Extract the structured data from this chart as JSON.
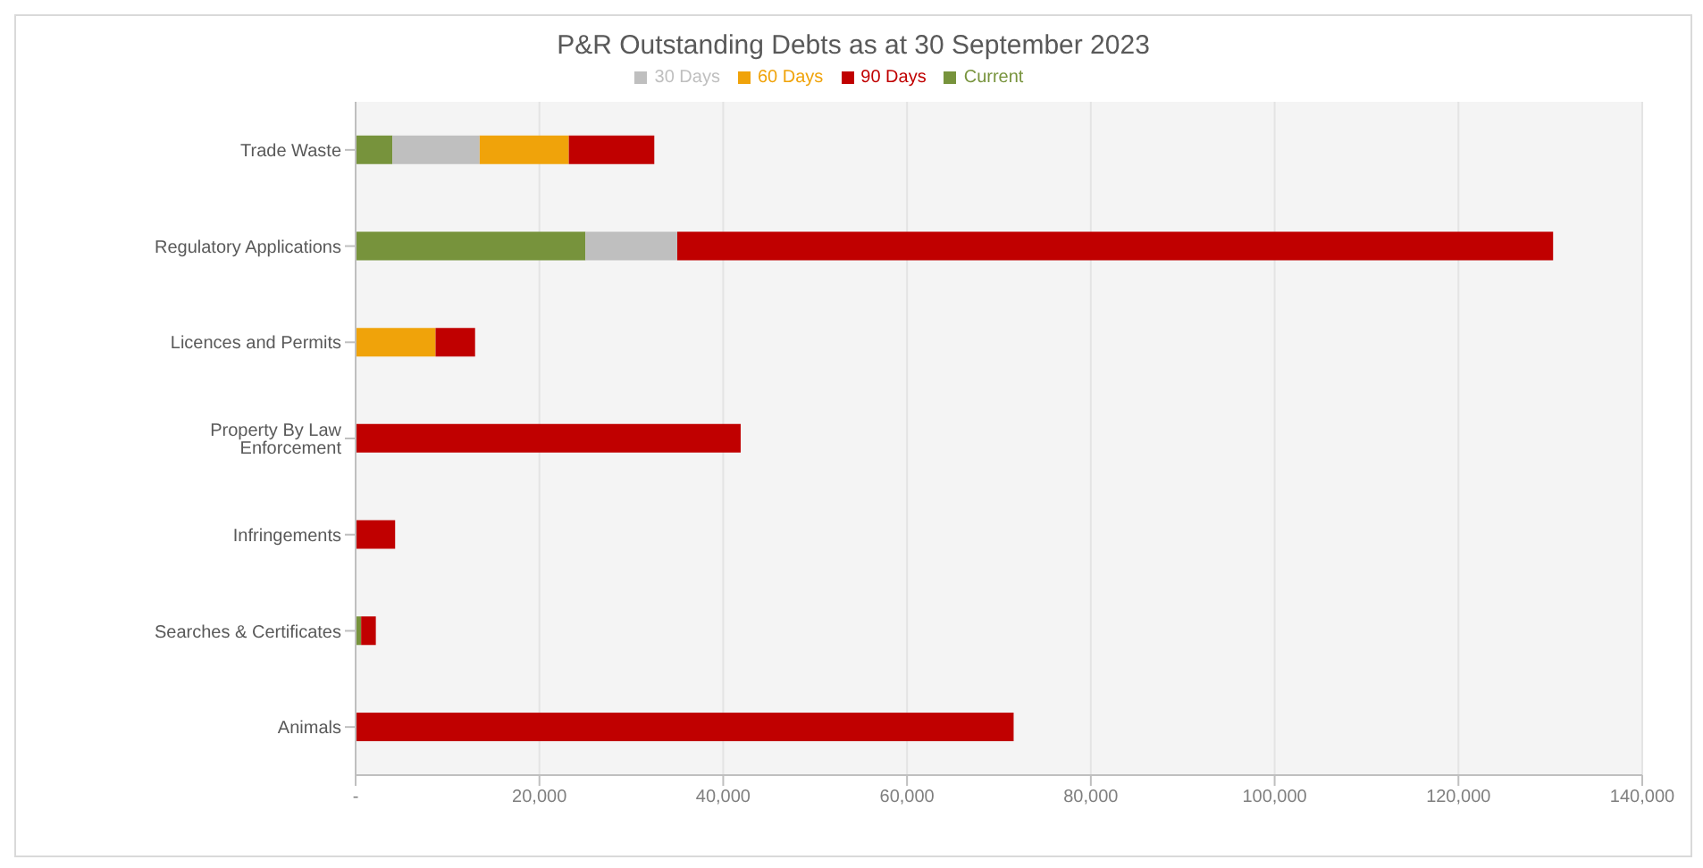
{
  "chart_data": {
    "type": "bar",
    "orientation": "horizontal",
    "stacked": true,
    "title": "P&R Outstanding Debts as at 30 September 2023",
    "categories": [
      "Trade Waste",
      "Regulatory Applications",
      "Licences and Permits",
      "Property By Law Enforcement",
      "Infringements",
      "Searches & Certificates",
      "Animals"
    ],
    "series": [
      {
        "name": "Current",
        "color": "#77933c",
        "values": [
          4000,
          25000,
          0,
          0,
          0,
          600,
          0
        ]
      },
      {
        "name": "30 Days",
        "color": "#bfbfbf",
        "values": [
          9500,
          10000,
          0,
          0,
          0,
          0,
          0
        ]
      },
      {
        "name": "60 Days",
        "color": "#f0a30a",
        "values": [
          9700,
          0,
          8700,
          0,
          0,
          0,
          0
        ]
      },
      {
        "name": "90 Days",
        "color": "#c00000",
        "values": [
          9300,
          95300,
          4300,
          41900,
          4300,
          1600,
          71600
        ]
      }
    ],
    "xlim": [
      0,
      140000
    ],
    "xticks": [
      {
        "value": 0,
        "label": "-"
      },
      {
        "value": 20000,
        "label": "20,000"
      },
      {
        "value": 40000,
        "label": "40,000"
      },
      {
        "value": 60000,
        "label": "60,000"
      },
      {
        "value": 80000,
        "label": "80,000"
      },
      {
        "value": 100000,
        "label": "100,000"
      },
      {
        "value": 120000,
        "label": "120,000"
      },
      {
        "value": 140000,
        "label": "140,000"
      }
    ],
    "grid": "x",
    "legend": "top"
  }
}
